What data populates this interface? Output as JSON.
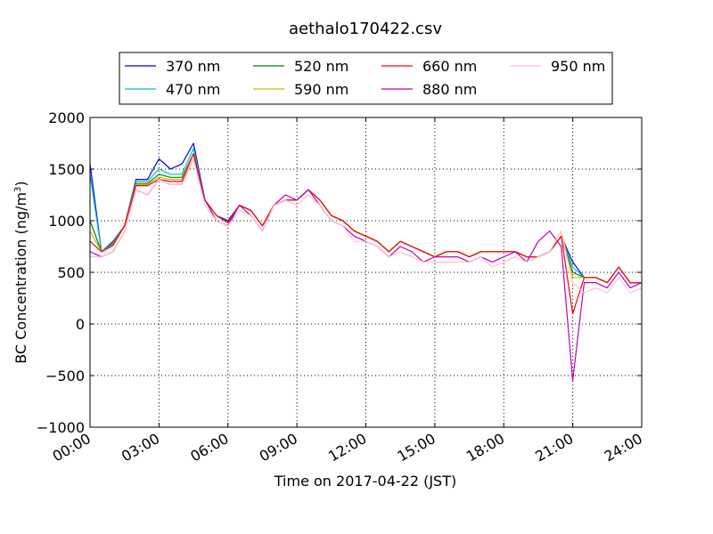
{
  "chart_data": {
    "type": "line",
    "title": "aethalo170422.csv",
    "xlabel": "Time on 2017-04-22 (JST)",
    "ylabel_main": "BC Concentration (ng/m",
    "ylabel_sup": "3",
    "ylabel_close": ")",
    "xlim": [
      0,
      24
    ],
    "ylim": [
      -1000,
      2000
    ],
    "x_ticks": [
      0,
      3,
      6,
      9,
      12,
      15,
      18,
      21,
      24
    ],
    "x_tick_labels": [
      "00:00",
      "03:00",
      "06:00",
      "09:00",
      "12:00",
      "15:00",
      "18:00",
      "21:00",
      "24:00"
    ],
    "y_ticks": [
      -1000,
      -500,
      0,
      500,
      1000,
      1500,
      2000
    ],
    "y_tick_labels": [
      "−1000",
      "−500",
      "0",
      "500",
      "1000",
      "1500",
      "2000"
    ],
    "grid": true,
    "legend_position": "top-center",
    "x": [
      0.0,
      0.5,
      1.0,
      1.5,
      2.0,
      2.5,
      3.0,
      3.5,
      4.0,
      4.5,
      5.0,
      5.5,
      6.0,
      6.5,
      7.0,
      7.5,
      8.0,
      8.5,
      9.0,
      9.5,
      10.0,
      10.5,
      11.0,
      11.5,
      12.0,
      12.5,
      13.0,
      13.5,
      14.0,
      14.5,
      15.0,
      15.5,
      16.0,
      16.5,
      17.0,
      17.5,
      18.0,
      18.5,
      19.0,
      19.5,
      20.0,
      20.5,
      21.0,
      21.5,
      22.0,
      22.5,
      23.0,
      23.5,
      24.0
    ],
    "series": [
      {
        "name": "370 nm",
        "color": "#0000ff",
        "values": [
          1550,
          700,
          800,
          950,
          1400,
          1400,
          1600,
          1500,
          1550,
          1750,
          1200,
          1050,
          1000,
          1150,
          1100,
          950,
          1150,
          1200,
          1200,
          1300,
          1200,
          1050,
          1000,
          900,
          850,
          800,
          700,
          800,
          750,
          700,
          650,
          700,
          700,
          650,
          700,
          700,
          700,
          700,
          650,
          650,
          700,
          850,
          600,
          450,
          450,
          400,
          550,
          400,
          400
        ]
      },
      {
        "name": "470 nm",
        "color": "#00bfbf",
        "values": [
          1450,
          700,
          790,
          950,
          1380,
          1380,
          1500,
          1450,
          1450,
          1700,
          1200,
          1050,
          980,
          1150,
          1100,
          950,
          1150,
          1200,
          1200,
          1300,
          1200,
          1050,
          1000,
          900,
          850,
          800,
          700,
          800,
          750,
          700,
          650,
          700,
          700,
          650,
          700,
          700,
          700,
          700,
          650,
          650,
          700,
          850,
          550,
          450,
          450,
          400,
          550,
          400,
          400
        ]
      },
      {
        "name": "520 nm",
        "color": "#008000",
        "values": [
          1000,
          700,
          780,
          950,
          1360,
          1360,
          1450,
          1420,
          1420,
          1650,
          1200,
          1050,
          980,
          1150,
          1100,
          950,
          1150,
          1200,
          1200,
          1300,
          1200,
          1050,
          1000,
          900,
          850,
          800,
          700,
          800,
          750,
          700,
          650,
          700,
          700,
          650,
          700,
          700,
          700,
          700,
          650,
          650,
          700,
          850,
          500,
          450,
          450,
          400,
          550,
          400,
          400
        ]
      },
      {
        "name": "590 nm",
        "color": "#bfbf00",
        "values": [
          900,
          700,
          770,
          950,
          1350,
          1350,
          1420,
          1400,
          1400,
          1650,
          1200,
          1050,
          980,
          1150,
          1100,
          950,
          1150,
          1200,
          1200,
          1300,
          1200,
          1050,
          1000,
          900,
          850,
          800,
          700,
          800,
          750,
          700,
          650,
          700,
          700,
          650,
          700,
          700,
          700,
          700,
          650,
          650,
          700,
          850,
          450,
          450,
          450,
          400,
          550,
          400,
          400
        ]
      },
      {
        "name": "660 nm",
        "color": "#ff0000",
        "values": [
          800,
          700,
          760,
          950,
          1340,
          1340,
          1400,
          1380,
          1380,
          1650,
          1200,
          1050,
          980,
          1150,
          1100,
          950,
          1150,
          1200,
          1200,
          1300,
          1200,
          1050,
          1000,
          900,
          850,
          800,
          700,
          800,
          750,
          700,
          650,
          700,
          700,
          650,
          700,
          700,
          700,
          700,
          650,
          650,
          700,
          850,
          100,
          450,
          450,
          400,
          550,
          400,
          400
        ]
      },
      {
        "name": "880 nm",
        "color": "#bf00bf",
        "values": [
          700,
          650,
          700,
          900,
          1300,
          1250,
          1400,
          1350,
          1350,
          1600,
          1200,
          1000,
          950,
          1150,
          1050,
          900,
          1150,
          1250,
          1200,
          1300,
          1150,
          1000,
          950,
          850,
          800,
          750,
          650,
          750,
          700,
          600,
          650,
          650,
          650,
          600,
          650,
          600,
          650,
          700,
          600,
          800,
          900,
          750,
          -550,
          400,
          400,
          350,
          500,
          350,
          400
        ]
      },
      {
        "name": "950 nm",
        "color": "#ffc0cb",
        "values": [
          650,
          650,
          700,
          900,
          1300,
          1250,
          1400,
          1350,
          1350,
          1600,
          1150,
          1000,
          950,
          1100,
          1050,
          900,
          1150,
          1200,
          1150,
          1250,
          1150,
          1000,
          950,
          800,
          800,
          750,
          650,
          700,
          650,
          600,
          600,
          600,
          600,
          600,
          650,
          550,
          600,
          650,
          600,
          650,
          700,
          900,
          400,
          300,
          350,
          300,
          450,
          300,
          350
        ]
      }
    ]
  }
}
